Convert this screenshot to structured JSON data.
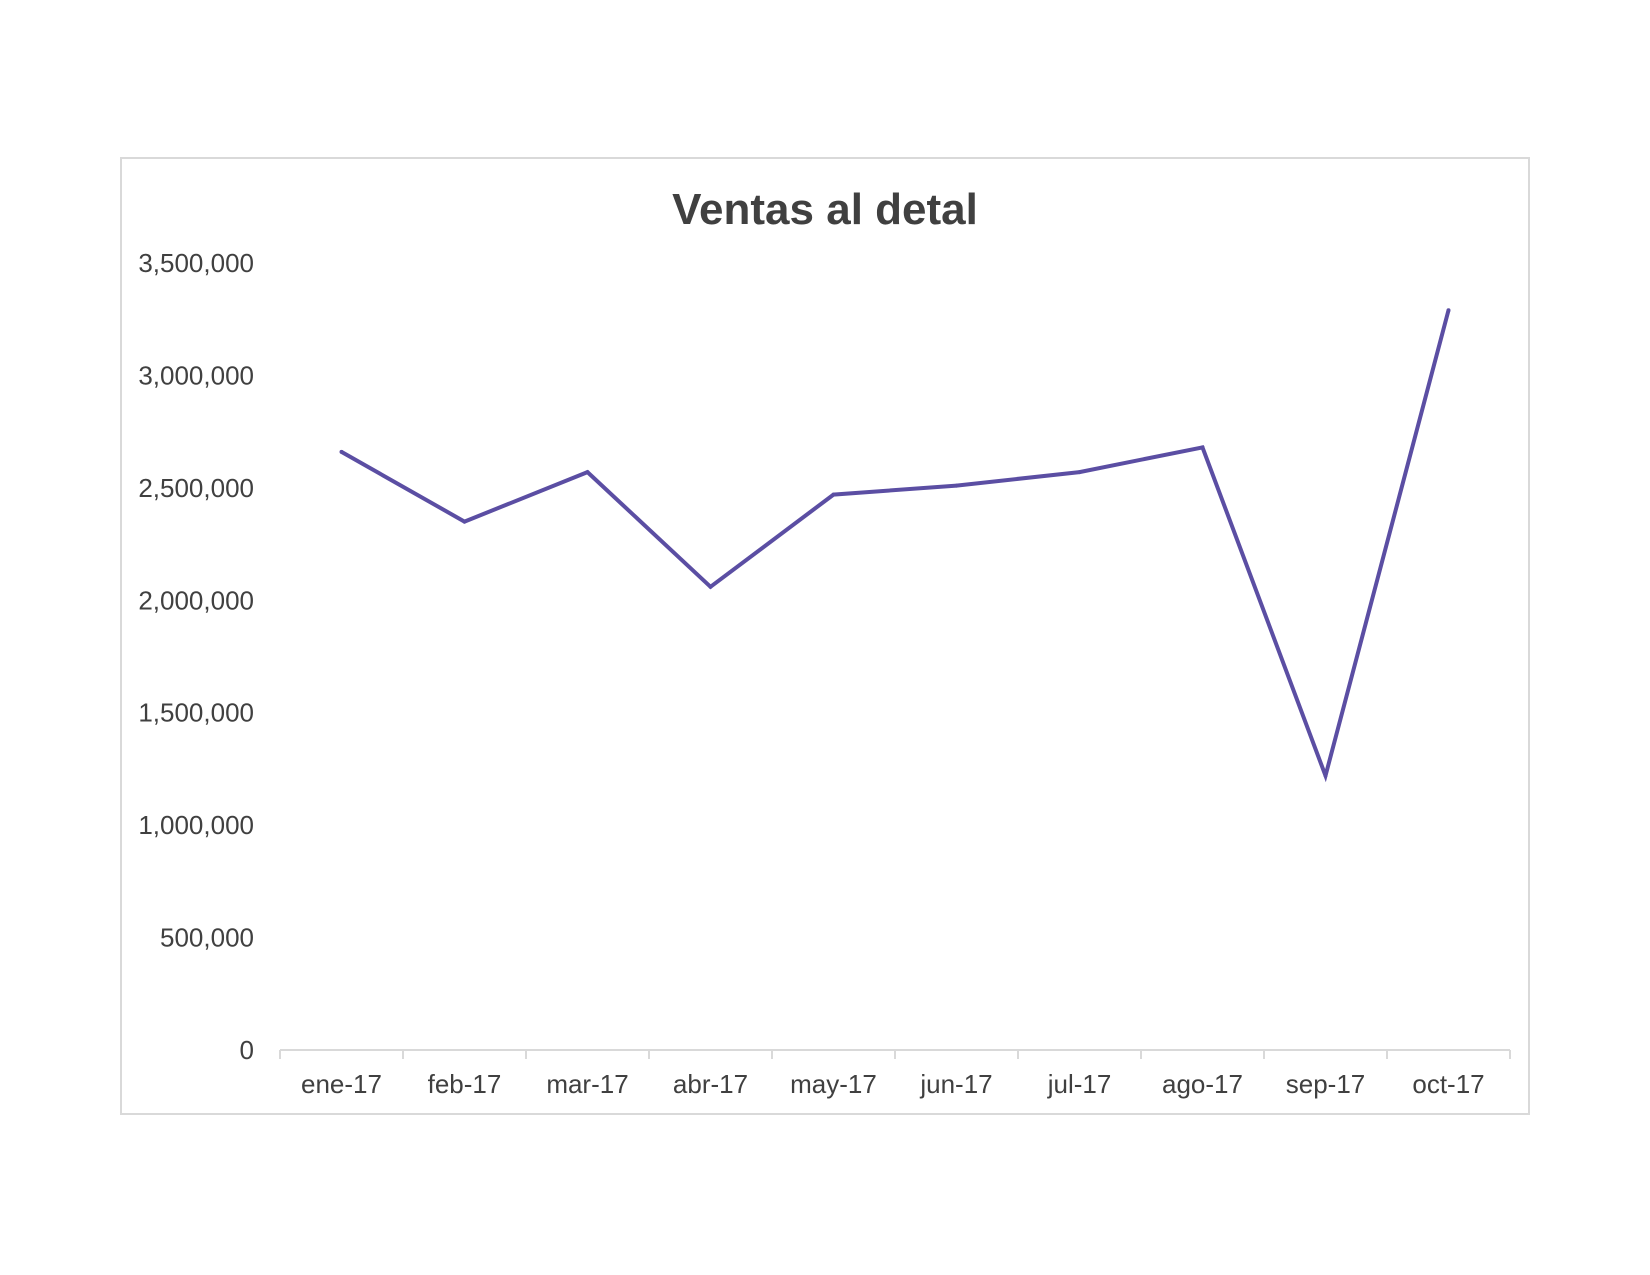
{
  "chart_data": {
    "type": "line",
    "title": "Ventas al detal",
    "xlabel": "",
    "ylabel": "",
    "categories": [
      "ene-17",
      "feb-17",
      "mar-17",
      "abr-17",
      "may-17",
      "jun-17",
      "jul-17",
      "ago-17",
      "sep-17",
      "oct-17"
    ],
    "series": [
      {
        "values": [
          2660000,
          2350000,
          2570000,
          2060000,
          2470000,
          2510000,
          2570000,
          2680000,
          1220000,
          3290000
        ],
        "color": "#5b4ea3"
      }
    ],
    "ylim": [
      0,
      3500000
    ],
    "yticks": [
      "0",
      "500,000",
      "1,000,000",
      "1,500,000",
      "2,000,000",
      "2,500,000",
      "3,000,000",
      "3,500,000"
    ],
    "grid": false,
    "legend": "none"
  }
}
